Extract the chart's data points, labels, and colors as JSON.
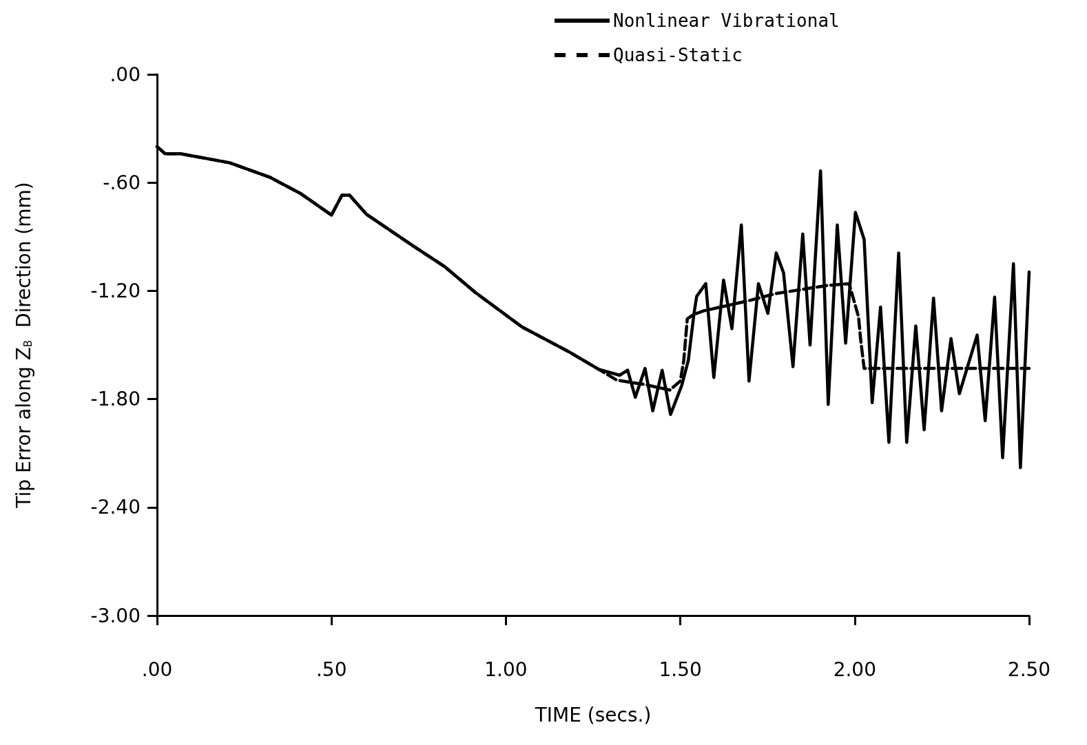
{
  "chart_data": {
    "type": "line",
    "xlabel": "TIME (secs.)",
    "ylabel": "Tip Error along Z$_{B}$  Direction (mm)",
    "xlim": [
      0,
      2.5
    ],
    "xticks": [
      {
        "value": 0,
        "label": ".00"
      },
      {
        "value": 0.5,
        "label": ".50"
      },
      {
        "value": 1,
        "label": "1.00"
      },
      {
        "value": 1.5,
        "label": "1.50"
      },
      {
        "value": 2,
        "label": "2.00"
      },
      {
        "value": 2.5,
        "label": "2.50"
      }
    ],
    "ylim": [
      -3,
      0
    ],
    "yticks": [
      {
        "value": 0,
        "label": ".00"
      },
      {
        "value": -0.6,
        "label": "-.60"
      },
      {
        "value": -1.2,
        "label": "-1.20"
      },
      {
        "value": -1.8,
        "label": "-1.80"
      },
      {
        "value": -2.4,
        "label": "-2.40"
      },
      {
        "value": -3,
        "label": "-3.00"
      }
    ],
    "grid": false,
    "legend": "top right",
    "marker": "none",
    "series": [
      {
        "name": "Nonlinear Vibrational",
        "color": "#000000",
        "line_style": "solid",
        "x": [
          0,
          0.023,
          0.067,
          0.208,
          0.323,
          0.411,
          0.5,
          0.53,
          0.552,
          0.6,
          0.737,
          0.824,
          0.913,
          1.046,
          1.178,
          1.266,
          1.326,
          1.349,
          1.371,
          1.399,
          1.421,
          1.448,
          1.472,
          1.504,
          1.523,
          1.539,
          1.547,
          1.573,
          1.596,
          1.624,
          1.648,
          1.675,
          1.697,
          1.724,
          1.751,
          1.775,
          1.796,
          1.823,
          1.851,
          1.872,
          1.902,
          1.924,
          1.95,
          1.974,
          2.002,
          2.027,
          2.05,
          2.074,
          2.098,
          2.126,
          2.149,
          2.175,
          2.199,
          2.226,
          2.249,
          2.276,
          2.3,
          2.351,
          2.374,
          2.401,
          2.424,
          2.455,
          2.475,
          2.5
        ],
        "values": [
          -0.4,
          -0.44,
          -0.44,
          -0.49,
          -0.57,
          -0.66,
          -0.78,
          -0.67,
          -0.67,
          -0.775,
          -0.955,
          -1.065,
          -1.21,
          -1.4,
          -1.535,
          -1.635,
          -1.668,
          -1.64,
          -1.79,
          -1.63,
          -1.865,
          -1.64,
          -1.885,
          -1.725,
          -1.585,
          -1.33,
          -1.23,
          -1.16,
          -1.68,
          -1.14,
          -1.41,
          -0.835,
          -1.7,
          -1.16,
          -1.325,
          -0.99,
          -1.1,
          -1.62,
          -0.885,
          -1.5,
          -0.535,
          -1.83,
          -0.835,
          -1.49,
          -0.765,
          -0.915,
          -1.82,
          -1.29,
          -2.04,
          -0.99,
          -2.04,
          -1.395,
          -1.97,
          -1.24,
          -1.865,
          -1.465,
          -1.77,
          -1.445,
          -1.92,
          -1.235,
          -2.125,
          -1.05,
          -2.18,
          -1.095
        ]
      },
      {
        "name": "Quasi-Static",
        "color": "#000000",
        "line_style": "dashed",
        "x": [
          0,
          0.023,
          0.067,
          0.208,
          0.323,
          0.411,
          0.5,
          0.53,
          0.552,
          0.6,
          0.737,
          0.824,
          0.913,
          1.046,
          1.178,
          1.266,
          1.318,
          1.4,
          1.47,
          1.5,
          1.51,
          1.52,
          1.539,
          1.569,
          1.695,
          1.774,
          1.922,
          1.984,
          2.011,
          2.017,
          2.027,
          2.5
        ],
        "values": [
          -0.4,
          -0.44,
          -0.44,
          -0.49,
          -0.57,
          -0.66,
          -0.78,
          -0.67,
          -0.67,
          -0.775,
          -0.955,
          -1.065,
          -1.21,
          -1.4,
          -1.535,
          -1.635,
          -1.695,
          -1.72,
          -1.75,
          -1.7,
          -1.585,
          -1.355,
          -1.33,
          -1.31,
          -1.255,
          -1.215,
          -1.17,
          -1.16,
          -1.345,
          -1.47,
          -1.63,
          -1.63
        ]
      }
    ]
  }
}
